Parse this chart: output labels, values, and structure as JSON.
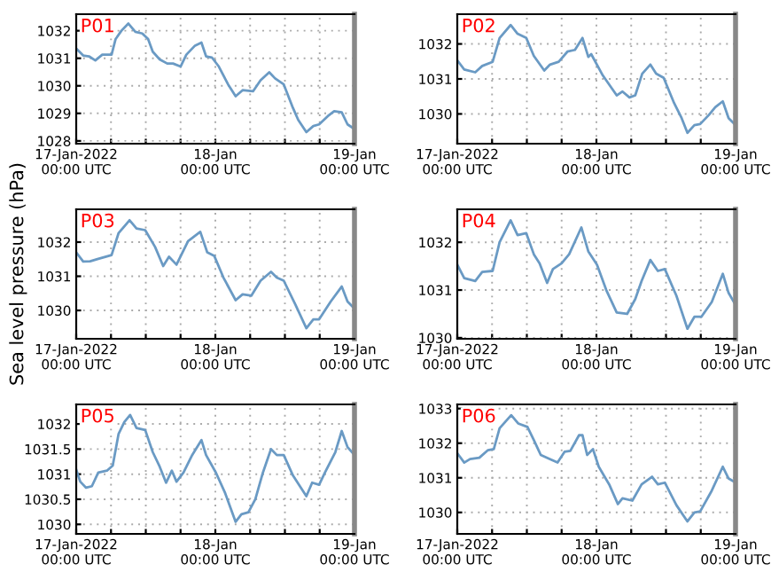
{
  "chart_data": [
    {
      "type": "line",
      "title": "P01",
      "xlim": [
        "2022-01-17T00:00",
        "2022-01-19T00:00"
      ],
      "ylim": [
        1027.9,
        1032.6
      ],
      "yticks": [
        1028,
        1029,
        1030,
        1031,
        1032
      ],
      "grid": true,
      "line_style": "solid",
      "xticks": [
        {
          "value": "2022-01-17T00:00",
          "label": "17-Jan-2022\n00:00 UTC"
        },
        {
          "value": "2022-01-17T06:00",
          "label": null
        },
        {
          "value": "2022-01-17T12:00",
          "label": null
        },
        {
          "value": "2022-01-17T18:00",
          "label": null
        },
        {
          "value": "2022-01-18T00:00",
          "label": "18-Jan\n00:00 UTC"
        },
        {
          "value": "2022-01-18T06:00",
          "label": null
        },
        {
          "value": "2022-01-18T12:00",
          "label": null
        },
        {
          "value": "2022-01-18T18:00",
          "label": null
        },
        {
          "value": "2022-01-19T00:00",
          "label": "19-Jan\n00:00 UTC"
        }
      ],
      "series": [
        {
          "color": "#6a9ac4",
          "x": [
            "2022-01-17T00:00",
            "2022-01-17T01:12",
            "2022-01-17T02:12",
            "2022-01-17T03:18",
            "2022-01-17T04:30",
            "2022-01-17T06:06",
            "2022-01-17T06:48",
            "2022-01-17T07:48",
            "2022-01-17T09:00",
            "2022-01-17T10:12",
            "2022-01-17T11:24",
            "2022-01-17T12:24",
            "2022-01-17T13:12",
            "2022-01-17T14:24",
            "2022-01-17T15:42",
            "2022-01-17T16:42",
            "2022-01-17T18:00",
            "2022-01-17T19:00",
            "2022-01-17T20:30",
            "2022-01-17T21:36",
            "2022-01-17T22:24",
            "2022-01-17T23:24",
            "2022-01-18T00:36",
            "2022-01-18T02:12",
            "2022-01-18T03:30",
            "2022-01-18T04:42",
            "2022-01-18T06:30",
            "2022-01-18T07:48",
            "2022-01-18T09:18",
            "2022-01-18T10:18",
            "2022-01-18T11:48",
            "2022-01-18T13:24",
            "2022-01-18T14:18",
            "2022-01-18T15:42",
            "2022-01-18T16:54",
            "2022-01-18T17:54",
            "2022-01-18T19:24",
            "2022-01-18T20:30",
            "2022-01-18T21:48",
            "2022-01-18T22:48",
            "2022-01-19T00:00"
          ],
          "values": [
            1031.35,
            1031.1,
            1031.07,
            1030.92,
            1031.13,
            1031.13,
            1031.7,
            1032,
            1032.26,
            1031.96,
            1031.9,
            1031.7,
            1031.24,
            1030.96,
            1030.81,
            1030.81,
            1030.7,
            1031.13,
            1031.46,
            1031.57,
            1031.07,
            1031.03,
            1030.7,
            1030.05,
            1029.62,
            1029.84,
            1029.8,
            1030.2,
            1030.49,
            1030.27,
            1030.05,
            1029.19,
            1028.76,
            1028.32,
            1028.54,
            1028.6,
            1028.9,
            1029.08,
            1029.04,
            1028.6,
            1028.43
          ]
        }
      ]
    },
    {
      "type": "line",
      "title": "P02",
      "xlim": [
        "2022-01-17T00:00",
        "2022-01-19T00:00"
      ],
      "ylim": [
        1029.15,
        1032.85
      ],
      "yticks": [
        1030,
        1031,
        1032
      ],
      "grid": true,
      "line_style": "solid",
      "xticks": [
        {
          "value": "2022-01-17T00:00",
          "label": "17-Jan-2022\n00:00 UTC"
        },
        {
          "value": "2022-01-17T06:00",
          "label": null
        },
        {
          "value": "2022-01-17T12:00",
          "label": null
        },
        {
          "value": "2022-01-17T18:00",
          "label": null
        },
        {
          "value": "2022-01-18T00:00",
          "label": "18-Jan\n00:00 UTC"
        },
        {
          "value": "2022-01-18T06:00",
          "label": null
        },
        {
          "value": "2022-01-18T12:00",
          "label": null
        },
        {
          "value": "2022-01-18T18:00",
          "label": null
        },
        {
          "value": "2022-01-19T00:00",
          "label": "19-Jan\n00:00 UTC"
        }
      ],
      "series": [
        {
          "color": "#6a9ac4",
          "x": [
            "2022-01-17T00:00",
            "2022-01-17T01:12",
            "2022-01-17T03:06",
            "2022-01-17T04:18",
            "2022-01-17T06:06",
            "2022-01-17T07:18",
            "2022-01-17T09:12",
            "2022-01-17T10:24",
            "2022-01-17T11:54",
            "2022-01-17T13:12",
            "2022-01-17T15:00",
            "2022-01-17T16:00",
            "2022-01-17T17:30",
            "2022-01-17T19:00",
            "2022-01-17T20:18",
            "2022-01-17T21:36",
            "2022-01-17T22:36",
            "2022-01-17T23:06",
            "2022-01-18T01:06",
            "2022-01-18T03:30",
            "2022-01-18T04:30",
            "2022-01-18T05:42",
            "2022-01-18T06:42",
            "2022-01-18T07:54",
            "2022-01-18T09:18",
            "2022-01-18T10:18",
            "2022-01-18T11:36",
            "2022-01-18T13:24",
            "2022-01-18T14:42",
            "2022-01-18T15:42",
            "2022-01-18T16:54",
            "2022-01-18T17:54",
            "2022-01-18T19:24",
            "2022-01-18T20:30",
            "2022-01-18T21:48",
            "2022-01-18T22:48",
            "2022-01-19T00:00"
          ],
          "values": [
            1031.53,
            1031.27,
            1031.19,
            1031.37,
            1031.49,
            1032.17,
            1032.54,
            1032.29,
            1032.17,
            1031.66,
            1031.24,
            1031.41,
            1031.49,
            1031.78,
            1031.83,
            1032.17,
            1031.63,
            1031.71,
            1031.1,
            1030.53,
            1030.64,
            1030.47,
            1030.53,
            1031.15,
            1031.41,
            1031.15,
            1031.03,
            1030.31,
            1029.88,
            1029.46,
            1029.68,
            1029.71,
            1029.97,
            1030.19,
            1030.36,
            1029.88,
            1029.68
          ]
        }
      ]
    },
    {
      "type": "line",
      "title": "P03",
      "ylabel": "Sea level pressure (hPa)",
      "xlim": [
        "2022-01-17T00:00",
        "2022-01-19T00:00"
      ],
      "ylim": [
        1029.17,
        1032.96
      ],
      "yticks": [
        1030,
        1031,
        1032
      ],
      "grid": true,
      "line_style": "solid",
      "xticks": [
        {
          "value": "2022-01-17T00:00",
          "label": "17-Jan-2022\n00:00 UTC"
        },
        {
          "value": "2022-01-17T06:00",
          "label": null
        },
        {
          "value": "2022-01-17T12:00",
          "label": null
        },
        {
          "value": "2022-01-17T18:00",
          "label": null
        },
        {
          "value": "2022-01-18T00:00",
          "label": "18-Jan\n00:00 UTC"
        },
        {
          "value": "2022-01-18T06:00",
          "label": null
        },
        {
          "value": "2022-01-18T12:00",
          "label": null
        },
        {
          "value": "2022-01-18T18:00",
          "label": null
        },
        {
          "value": "2022-01-19T00:00",
          "label": "19-Jan\n00:00 UTC"
        }
      ],
      "series": [
        {
          "color": "#6a9ac4",
          "x": [
            "2022-01-17T00:00",
            "2022-01-17T01:12",
            "2022-01-17T02:24",
            "2022-01-17T03:48",
            "2022-01-17T06:06",
            "2022-01-17T07:18",
            "2022-01-17T09:12",
            "2022-01-17T10:24",
            "2022-01-17T11:54",
            "2022-01-17T13:36",
            "2022-01-17T15:00",
            "2022-01-17T16:00",
            "2022-01-17T17:18",
            "2022-01-17T19:18",
            "2022-01-17T21:24",
            "2022-01-17T22:36",
            "2022-01-17T23:48",
            "2022-01-18T01:24",
            "2022-01-18T03:30",
            "2022-01-18T04:42",
            "2022-01-18T06:12",
            "2022-01-18T07:48",
            "2022-01-18T09:36",
            "2022-01-18T10:36",
            "2022-01-18T11:48",
            "2022-01-18T13:48",
            "2022-01-18T15:42",
            "2022-01-18T16:54",
            "2022-01-18T17:54",
            "2022-01-18T19:54",
            "2022-01-18T21:48",
            "2022-01-18T22:48",
            "2022-01-19T00:00"
          ],
          "values": [
            1031.7,
            1031.43,
            1031.44,
            1031.51,
            1031.62,
            1032.26,
            1032.64,
            1032.4,
            1032.35,
            1031.86,
            1031.3,
            1031.57,
            1031.34,
            1032.03,
            1032.3,
            1031.7,
            1031.6,
            1030.96,
            1030.3,
            1030.47,
            1030.43,
            1030.87,
            1031.13,
            1030.96,
            1030.87,
            1030.17,
            1029.48,
            1029.74,
            1029.74,
            1030.26,
            1030.7,
            1030.26,
            1030.05
          ]
        }
      ]
    },
    {
      "type": "line",
      "title": "P04",
      "xlim": [
        "2022-01-17T00:00",
        "2022-01-19T00:00"
      ],
      "ylim": [
        1029.98,
        1032.69
      ],
      "yticks": [
        1030,
        1031,
        1032
      ],
      "grid": true,
      "line_style": "solid",
      "xticks": [
        {
          "value": "2022-01-17T00:00",
          "label": "17-Jan-2022\n00:00 UTC"
        },
        {
          "value": "2022-01-17T06:00",
          "label": null
        },
        {
          "value": "2022-01-17T12:00",
          "label": null
        },
        {
          "value": "2022-01-17T18:00",
          "label": null
        },
        {
          "value": "2022-01-18T00:00",
          "label": "18-Jan\n00:00 UTC"
        },
        {
          "value": "2022-01-18T06:00",
          "label": null
        },
        {
          "value": "2022-01-18T12:00",
          "label": null
        },
        {
          "value": "2022-01-18T18:00",
          "label": null
        },
        {
          "value": "2022-01-19T00:00",
          "label": "19-Jan\n00:00 UTC"
        }
      ],
      "series": [
        {
          "color": "#6a9ac4",
          "x": [
            "2022-01-17T00:00",
            "2022-01-17T01:12",
            "2022-01-17T03:06",
            "2022-01-17T04:18",
            "2022-01-17T06:06",
            "2022-01-17T07:18",
            "2022-01-17T09:12",
            "2022-01-17T10:24",
            "2022-01-17T11:54",
            "2022-01-17T13:12",
            "2022-01-17T14:12",
            "2022-01-17T15:30",
            "2022-01-17T16:30",
            "2022-01-17T18:00",
            "2022-01-17T19:18",
            "2022-01-17T21:24",
            "2022-01-17T22:36",
            "2022-01-18T00:06",
            "2022-01-18T01:42",
            "2022-01-18T03:30",
            "2022-01-18T05:18",
            "2022-01-18T06:42",
            "2022-01-18T07:48",
            "2022-01-18T09:18",
            "2022-01-18T10:36",
            "2022-01-18T11:48",
            "2022-01-18T13:48",
            "2022-01-18T15:42",
            "2022-01-18T16:54",
            "2022-01-18T18:06",
            "2022-01-18T19:54",
            "2022-01-18T21:48",
            "2022-01-18T22:48",
            "2022-01-19T00:00"
          ],
          "values": [
            1031.53,
            1031.25,
            1031.19,
            1031.38,
            1031.4,
            1032,
            1032.46,
            1032.15,
            1032.19,
            1031.75,
            1031.56,
            1031.15,
            1031.44,
            1031.56,
            1031.75,
            1032.31,
            1031.81,
            1031.53,
            1031,
            1030.53,
            1030.5,
            1030.81,
            1031.19,
            1031.63,
            1031.4,
            1031.44,
            1030.88,
            1030.19,
            1030.44,
            1030.44,
            1030.75,
            1031.34,
            1030.94,
            1030.69
          ]
        }
      ]
    },
    {
      "type": "line",
      "title": "P05",
      "xlim": [
        "2022-01-17T00:00",
        "2022-01-19T00:00"
      ],
      "ylim": [
        1029.81,
        1032.39
      ],
      "yticks": [
        1030,
        1030.5,
        1031,
        1031.5,
        1032
      ],
      "grid": true,
      "line_style": "solid",
      "xticks": [
        {
          "value": "2022-01-17T00:00",
          "label": "17-Jan-2022\n00:00 UTC"
        },
        {
          "value": "2022-01-17T06:00",
          "label": null
        },
        {
          "value": "2022-01-17T12:00",
          "label": null
        },
        {
          "value": "2022-01-17T18:00",
          "label": null
        },
        {
          "value": "2022-01-18T00:00",
          "label": "18-Jan\n00:00 UTC"
        },
        {
          "value": "2022-01-18T06:00",
          "label": null
        },
        {
          "value": "2022-01-18T12:00",
          "label": null
        },
        {
          "value": "2022-01-18T18:00",
          "label": null
        },
        {
          "value": "2022-01-19T00:00",
          "label": "19-Jan\n00:00 UTC"
        }
      ],
      "series": [
        {
          "color": "#6a9ac4",
          "x": [
            "2022-01-17T00:00",
            "2022-01-17T00:42",
            "2022-01-17T01:42",
            "2022-01-17T02:42",
            "2022-01-17T03:48",
            "2022-01-17T05:18",
            "2022-01-17T06:18",
            "2022-01-17T07:18",
            "2022-01-17T08:18",
            "2022-01-17T09:18",
            "2022-01-17T10:24",
            "2022-01-17T11:54",
            "2022-01-17T13:12",
            "2022-01-17T14:24",
            "2022-01-17T15:30",
            "2022-01-17T16:30",
            "2022-01-17T17:18",
            "2022-01-17T18:30",
            "2022-01-17T20:00",
            "2022-01-17T21:36",
            "2022-01-17T22:24",
            "2022-01-18T00:06",
            "2022-01-18T01:42",
            "2022-01-18T03:30",
            "2022-01-18T04:30",
            "2022-01-18T05:42",
            "2022-01-18T06:54",
            "2022-01-18T08:12",
            "2022-01-18T09:36",
            "2022-01-18T10:36",
            "2022-01-18T11:48",
            "2022-01-18T13:24",
            "2022-01-18T15:42",
            "2022-01-18T16:42",
            "2022-01-18T17:54",
            "2022-01-18T18:54",
            "2022-01-18T20:42",
            "2022-01-18T21:48",
            "2022-01-18T22:48",
            "2022-01-19T00:00"
          ],
          "values": [
            1031.09,
            1030.85,
            1030.73,
            1030.76,
            1031.03,
            1031.07,
            1031.17,
            1031.8,
            1032.04,
            1032.18,
            1031.92,
            1031.88,
            1031.44,
            1031.15,
            1030.83,
            1031.07,
            1030.85,
            1031.03,
            1031.38,
            1031.68,
            1031.38,
            1031.03,
            1030.62,
            1030.05,
            1030.2,
            1030.24,
            1030.5,
            1031.03,
            1031.5,
            1031.38,
            1031.38,
            1030.97,
            1030.56,
            1030.83,
            1030.79,
            1031.03,
            1031.44,
            1031.86,
            1031.54,
            1031.38
          ]
        }
      ]
    },
    {
      "type": "line",
      "title": "P06",
      "xlim": [
        "2022-01-17T00:00",
        "2022-01-19T00:00"
      ],
      "ylim": [
        1029.38,
        1033.12
      ],
      "yticks": [
        1030,
        1031,
        1032,
        1033
      ],
      "grid": true,
      "line_style": "solid",
      "xticks": [
        {
          "value": "2022-01-17T00:00",
          "label": "17-Jan-2022\n00:00 UTC"
        },
        {
          "value": "2022-01-17T06:00",
          "label": null
        },
        {
          "value": "2022-01-17T12:00",
          "label": null
        },
        {
          "value": "2022-01-17T18:00",
          "label": null
        },
        {
          "value": "2022-01-18T00:00",
          "label": "18-Jan\n00:00 UTC"
        },
        {
          "value": "2022-01-18T06:00",
          "label": null
        },
        {
          "value": "2022-01-18T12:00",
          "label": null
        },
        {
          "value": "2022-01-18T18:00",
          "label": null
        },
        {
          "value": "2022-01-19T00:00",
          "label": "19-Jan\n00:00 UTC"
        }
      ],
      "series": [
        {
          "color": "#6a9ac4",
          "x": [
            "2022-01-17T00:00",
            "2022-01-17T01:12",
            "2022-01-17T02:12",
            "2022-01-17T03:48",
            "2022-01-17T05:18",
            "2022-01-17T06:18",
            "2022-01-17T07:18",
            "2022-01-17T09:18",
            "2022-01-17T10:30",
            "2022-01-17T12:06",
            "2022-01-17T13:12",
            "2022-01-17T14:24",
            "2022-01-17T16:00",
            "2022-01-17T17:18",
            "2022-01-17T18:30",
            "2022-01-17T19:30",
            "2022-01-17T21:00",
            "2022-01-17T21:36",
            "2022-01-17T22:24",
            "2022-01-17T23:24",
            "2022-01-18T00:24",
            "2022-01-18T02:12",
            "2022-01-18T03:42",
            "2022-01-18T04:30",
            "2022-01-18T06:12",
            "2022-01-18T07:48",
            "2022-01-18T09:36",
            "2022-01-18T10:36",
            "2022-01-18T11:48",
            "2022-01-18T13:48",
            "2022-01-18T15:42",
            "2022-01-18T16:54",
            "2022-01-18T17:54",
            "2022-01-18T19:54",
            "2022-01-18T21:48",
            "2022-01-18T22:48",
            "2022-01-19T00:00"
          ],
          "values": [
            1031.71,
            1031.44,
            1031.54,
            1031.58,
            1031.8,
            1031.83,
            1032.43,
            1032.81,
            1032.57,
            1032.47,
            1032.09,
            1031.66,
            1031.54,
            1031.44,
            1031.75,
            1031.78,
            1032.23,
            1032.23,
            1031.66,
            1031.83,
            1031.32,
            1030.81,
            1030.24,
            1030.41,
            1030.34,
            1030.81,
            1031.03,
            1030.81,
            1030.86,
            1030.21,
            1029.74,
            1030,
            1030.03,
            1030.63,
            1031.32,
            1030.98,
            1030.86
          ]
        }
      ]
    }
  ]
}
